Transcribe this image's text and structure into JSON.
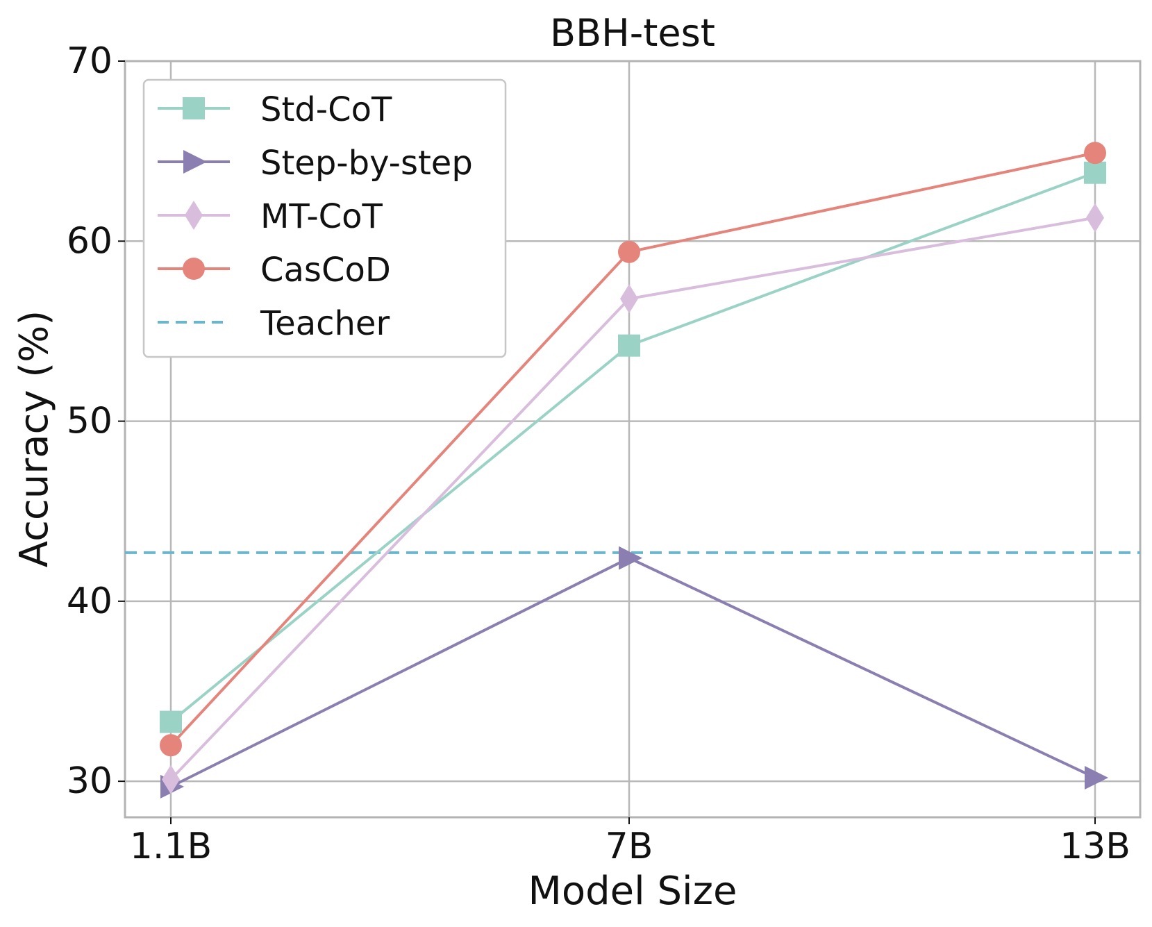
{
  "chart_data": {
    "type": "line",
    "title": "BBH-test",
    "xlabel": "Model Size",
    "ylabel": "Accuracy (%)",
    "categories": [
      "1.1B",
      "7B",
      "13B"
    ],
    "ylim": [
      28,
      70
    ],
    "yticks": [
      30,
      40,
      50,
      60,
      70
    ],
    "grid": true,
    "legend_position": "top-left",
    "series": [
      {
        "name": "Std-CoT",
        "values": [
          33.3,
          54.2,
          63.8
        ],
        "color": "#9ad3c6",
        "marker": "square",
        "line_style": "solid"
      },
      {
        "name": "Step-by-step",
        "values": [
          29.7,
          42.4,
          30.2
        ],
        "color": "#8b7fb1",
        "marker": "triangle-right",
        "line_style": "solid"
      },
      {
        "name": "MT-CoT",
        "values": [
          30.1,
          56.8,
          61.3
        ],
        "color": "#d8bddc",
        "marker": "diamond",
        "line_style": "solid"
      },
      {
        "name": "CasCoD",
        "values": [
          32.0,
          59.4,
          64.9
        ],
        "color": "#e5847b",
        "marker": "circle",
        "line_style": "solid"
      }
    ],
    "reference_lines": [
      {
        "name": "Teacher",
        "y": 42.7,
        "color": "#6bb6cc",
        "line_style": "dashed"
      }
    ]
  }
}
